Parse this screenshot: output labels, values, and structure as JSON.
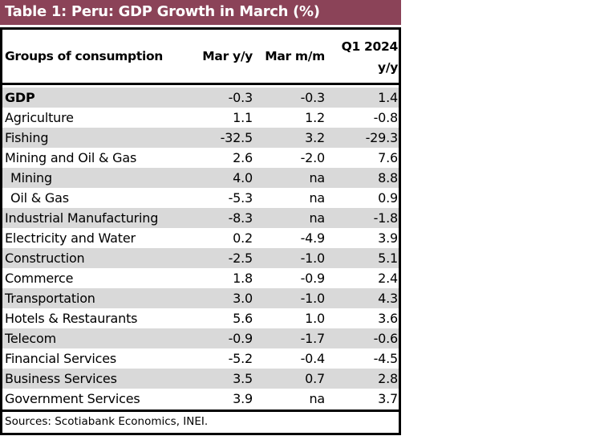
{
  "title": "Table 1: Peru: GDP Growth in March (%)",
  "columns": {
    "label": "Groups of consumption",
    "c1": "Mar y/y",
    "c2": "Mar m/m",
    "c3_line1": "Q1 2024",
    "c3_line2": "y/y"
  },
  "rows": [
    {
      "label": "GDP",
      "c1": "-0.3",
      "c2": "-0.3",
      "c3": "1.4",
      "bold": true
    },
    {
      "label": "Agriculture",
      "c1": "1.1",
      "c2": "1.2",
      "c3": "-0.8"
    },
    {
      "label": "Fishing",
      "c1": "-32.5",
      "c2": "3.2",
      "c3": "-29.3"
    },
    {
      "label": "Mining and Oil & Gas",
      "c1": "2.6",
      "c2": "-2.0",
      "c3": "7.6"
    },
    {
      "label": "Mining",
      "c1": "4.0",
      "c2": "na",
      "c3": "8.8",
      "indent": true
    },
    {
      "label": "Oil & Gas",
      "c1": "-5.3",
      "c2": "na",
      "c3": "0.9",
      "indent": true
    },
    {
      "label": "Industrial Manufacturing",
      "c1": "-8.3",
      "c2": "na",
      "c3": "-1.8"
    },
    {
      "label": "Electricity and Water",
      "c1": "0.2",
      "c2": "-4.9",
      "c3": "3.9"
    },
    {
      "label": "Construction",
      "c1": "-2.5",
      "c2": "-1.0",
      "c3": "5.1"
    },
    {
      "label": "Commerce",
      "c1": "1.8",
      "c2": "-0.9",
      "c3": "2.4"
    },
    {
      "label": "Transportation",
      "c1": "3.0",
      "c2": "-1.0",
      "c3": "4.3"
    },
    {
      "label": "Hotels & Restaurants",
      "c1": "5.6",
      "c2": "1.0",
      "c3": "3.6"
    },
    {
      "label": "Telecom",
      "c1": "-0.9",
      "c2": "-1.7",
      "c3": "-0.6"
    },
    {
      "label": "Financial Services",
      "c1": "-5.2",
      "c2": "-0.4",
      "c3": "-4.5"
    },
    {
      "label": "Business Services",
      "c1": "3.5",
      "c2": "0.7",
      "c3": "2.8"
    },
    {
      "label": "Government Services",
      "c1": "3.9",
      "c2": "na",
      "c3": "3.7"
    }
  ],
  "source": "Sources: Scotiabank Economics, INEI.",
  "colors": {
    "title_bg": "#8b4358",
    "shade": "#d9d9d9"
  }
}
